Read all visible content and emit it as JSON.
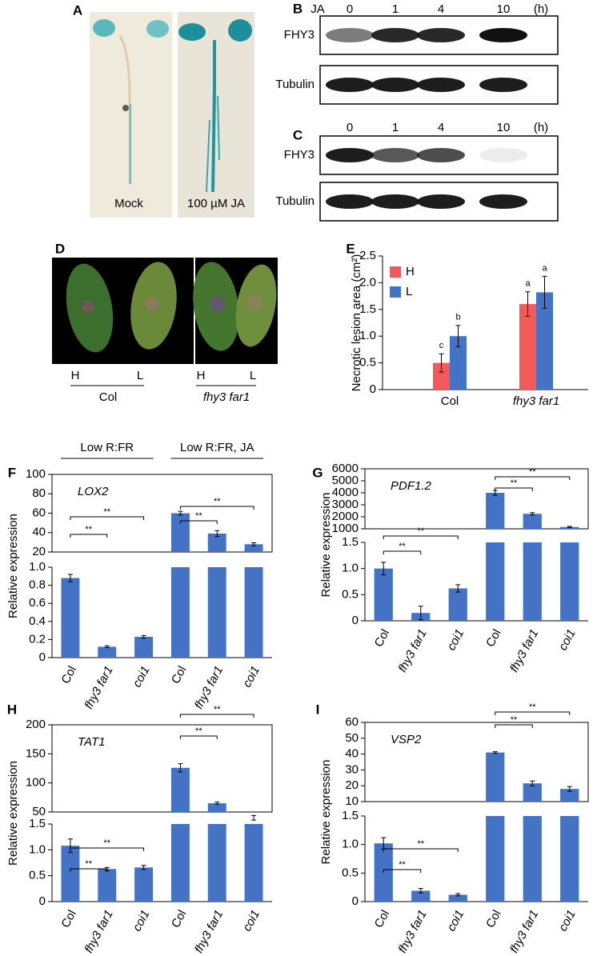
{
  "panels": {
    "A": {
      "letter": "A",
      "labels": [
        "Mock",
        "100 µM JA"
      ]
    },
    "B": {
      "letter": "B",
      "treatment": "JA",
      "times": [
        0,
        1,
        4,
        10
      ],
      "unit": "(h)",
      "rows": [
        "FHY3",
        "Tubulin"
      ]
    },
    "C": {
      "letter": "C",
      "times": [
        0,
        1,
        4,
        10
      ],
      "unit": "(h)",
      "rows": [
        "FHY3",
        "Tubulin"
      ]
    },
    "D": {
      "letter": "D",
      "genotypes": [
        {
          "name": "Col",
          "leaves": [
            "H",
            "L"
          ]
        },
        {
          "name": "fhy3 far1",
          "leaves": [
            "H",
            "L"
          ]
        }
      ]
    }
  },
  "chart_data": [
    {
      "type": "bar",
      "letter": "E",
      "ylabel": "Necrotic lesion area (cm²)",
      "categories": [
        "Col",
        "fhy3 far1"
      ],
      "series": [
        {
          "name": "H",
          "color": "#f25a5a",
          "values": [
            0.5,
            1.6
          ],
          "errors": [
            0.17,
            0.23
          ],
          "letters": [
            "c",
            "a"
          ]
        },
        {
          "name": "L",
          "color": "#4472c4",
          "values": [
            1.0,
            1.82
          ],
          "errors": [
            0.2,
            0.3
          ],
          "letters": [
            "b",
            "a"
          ]
        }
      ],
      "ylim": [
        0,
        2.5
      ],
      "yticks": [
        0,
        0.5,
        {
          "value": 1,
          "label": "1.0"
        },
        1.5,
        {
          "value": 2,
          "label": "2.0"
        },
        2.5
      ]
    },
    {
      "type": "broken-bar",
      "letter": "F",
      "gene": "LOX2",
      "ylabel": "Relative expression",
      "group_labels": [
        "Low R:FR",
        "Low R:FR, JA"
      ],
      "categories": [
        "Col",
        "fhy3 far1",
        "coi1",
        "Col",
        "fhy3 far1",
        "coi1"
      ],
      "color": "#4472c4",
      "values": [
        0.88,
        0.12,
        0.23,
        60,
        39,
        28
      ],
      "errors": [
        0.04,
        0.01,
        0.015,
        2,
        3,
        1.5
      ],
      "segments": [
        {
          "ylim": [
            0,
            1
          ],
          "yticks": [
            0,
            0.2,
            0.4,
            0.6,
            0.8,
            {
              "value": 1,
              "label": "1.0"
            }
          ]
        },
        {
          "ylim": [
            20,
            100
          ],
          "yticks": [
            20,
            40,
            60,
            80,
            100
          ]
        }
      ],
      "comparisons": [
        {
          "from": 0,
          "to": 1,
          "label": "**"
        },
        {
          "from": 0,
          "to": 2,
          "label": "**"
        },
        {
          "from": 3,
          "to": 4,
          "label": "**"
        },
        {
          "from": 3,
          "to": 5,
          "label": "**"
        }
      ]
    },
    {
      "type": "broken-bar",
      "letter": "G",
      "gene": "PDF1.2",
      "ylabel": "Relative expression",
      "categories": [
        "Col",
        "fhy3 far1",
        "coi1",
        "Col",
        "fhy3 far1",
        "coi1"
      ],
      "color": "#4472c4",
      "values": [
        1.0,
        0.15,
        0.62,
        4000,
        2250,
        1150
      ],
      "errors": [
        0.12,
        0.13,
        0.07,
        200,
        100,
        50
      ],
      "segments": [
        {
          "ylim": [
            0,
            1.5
          ],
          "yticks": [
            0,
            0.5,
            {
              "value": 1,
              "label": "1.0"
            },
            1.5
          ]
        },
        {
          "ylim": [
            1000,
            6000
          ],
          "yticks": [
            1000,
            2000,
            3000,
            4000,
            5000,
            6000
          ]
        }
      ],
      "comparisons": [
        {
          "from": 0,
          "to": 1,
          "label": "**"
        },
        {
          "from": 0,
          "to": 2,
          "label": "**"
        },
        {
          "from": 3,
          "to": 4,
          "label": "**"
        },
        {
          "from": 3,
          "to": 5,
          "label": "**"
        }
      ]
    },
    {
      "type": "broken-bar",
      "letter": "H",
      "gene": "TAT1",
      "ylabel": "Relative expression",
      "categories": [
        "Col",
        "fhy3 far1",
        "coi1",
        "Col",
        "fhy3 far1",
        "coi1"
      ],
      "color": "#4472c4",
      "values": [
        1.08,
        0.63,
        0.66,
        126,
        65,
        40
      ],
      "errors": [
        0.13,
        0.03,
        0.04,
        7,
        2,
        4
      ],
      "segments": [
        {
          "ylim": [
            0,
            1.5
          ],
          "yticks": [
            0,
            0.5,
            {
              "value": 1,
              "label": "1.0"
            },
            1.5
          ]
        },
        {
          "ylim": [
            50,
            200
          ],
          "yticks": [
            50,
            100,
            150,
            200
          ]
        }
      ],
      "comparisons": [
        {
          "from": 0,
          "to": 1,
          "label": "**"
        },
        {
          "from": 0,
          "to": 2,
          "label": "**"
        },
        {
          "from": 3,
          "to": 4,
          "label": "**"
        },
        {
          "from": 3,
          "to": 5,
          "label": "**"
        }
      ]
    },
    {
      "type": "broken-bar",
      "letter": "I",
      "gene": "VSP2",
      "ylabel": "Relative expression",
      "categories": [
        "Col",
        "fhy3 far1",
        "coi1",
        "Col",
        "fhy3 far1",
        "coi1"
      ],
      "color": "#4472c4",
      "values": [
        1.02,
        0.19,
        0.12,
        41,
        21.5,
        18
      ],
      "errors": [
        0.1,
        0.04,
        0.02,
        0.5,
        1.5,
        1.5
      ],
      "segments": [
        {
          "ylim": [
            0,
            1.5
          ],
          "yticks": [
            0,
            0.5,
            {
              "value": 1,
              "label": "1.0"
            },
            1.5
          ]
        },
        {
          "ylim": [
            10,
            60
          ],
          "yticks": [
            10,
            20,
            30,
            40,
            50,
            60
          ]
        }
      ],
      "comparisons": [
        {
          "from": 0,
          "to": 1,
          "label": "**"
        },
        {
          "from": 0,
          "to": 2,
          "label": "**"
        },
        {
          "from": 3,
          "to": 4,
          "label": "**"
        },
        {
          "from": 3,
          "to": 5,
          "label": "**"
        }
      ]
    }
  ]
}
